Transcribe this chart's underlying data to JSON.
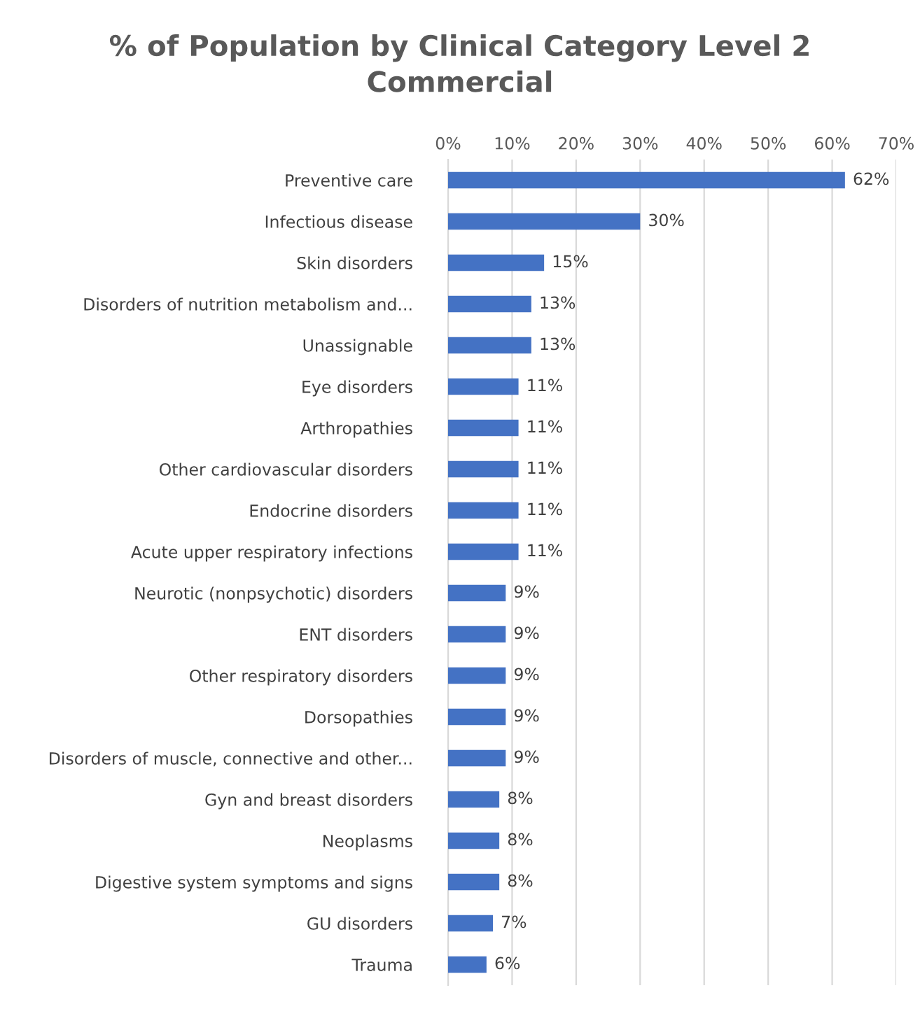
{
  "chart_data": {
    "type": "bar",
    "orientation": "horizontal",
    "title": "% of Population by Clinical Category Level 2\nCommercial",
    "categories": [
      "Preventive care",
      "Infectious disease",
      "Skin disorders",
      "Disorders of nutrition metabolism and...",
      "Unassignable",
      "Eye disorders",
      "Arthropathies",
      "Other cardiovascular disorders",
      "Endocrine disorders",
      "Acute upper respiratory infections",
      "Neurotic (nonpsychotic) disorders",
      "ENT disorders",
      "Other respiratory disorders",
      "Dorsopathies",
      "Disorders of muscle, connective and other...",
      "Gyn and breast disorders",
      "Neoplasms",
      "Digestive system symptoms and signs",
      "GU disorders",
      "Trauma"
    ],
    "values": [
      62,
      30,
      15,
      13,
      13,
      11,
      11,
      11,
      11,
      11,
      9,
      9,
      9,
      9,
      9,
      8,
      8,
      8,
      7,
      6
    ],
    "value_labels": [
      "62%",
      "30%",
      "15%",
      "13%",
      "13%",
      "11%",
      "11%",
      "11%",
      "11%",
      "11%",
      "9%",
      "9%",
      "9%",
      "9%",
      "9%",
      "8%",
      "8%",
      "8%",
      "7%",
      "6%"
    ],
    "color": "#4472c4",
    "xlim": [
      0,
      70
    ],
    "xticks": [
      {
        "value": 0,
        "label": "0%"
      },
      {
        "value": 10,
        "label": "10%"
      },
      {
        "value": 20,
        "label": "20%"
      },
      {
        "value": 30,
        "label": "30%"
      },
      {
        "value": 40,
        "label": "40%"
      },
      {
        "value": 50,
        "label": "50%"
      },
      {
        "value": 60,
        "label": "60%"
      },
      {
        "value": 70,
        "label": "70%"
      }
    ],
    "grid": "x",
    "legend": false
  }
}
